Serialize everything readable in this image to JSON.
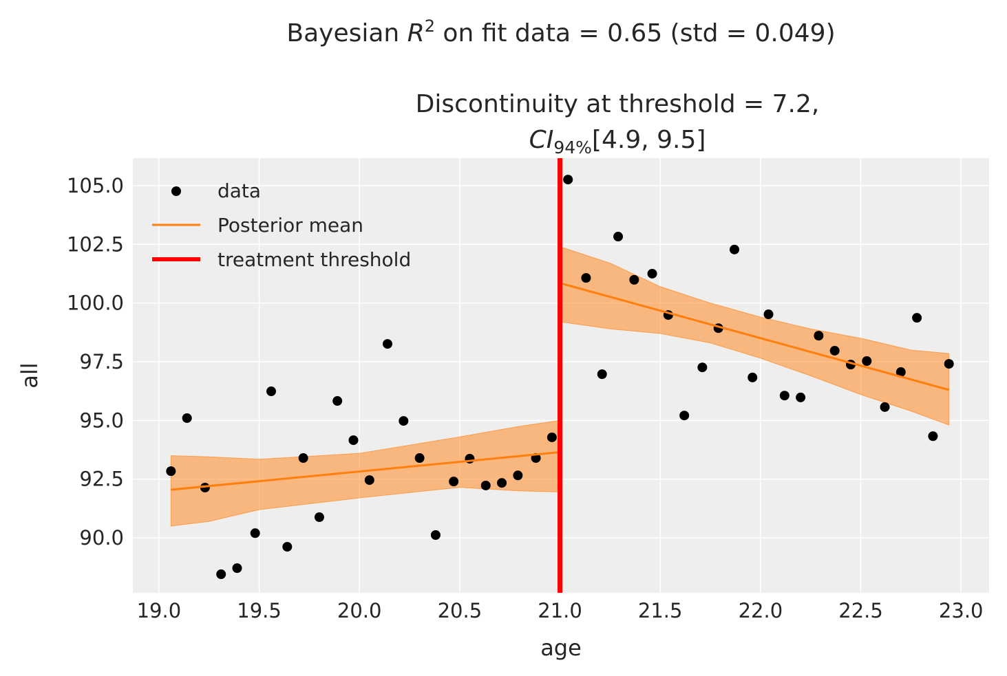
{
  "chart_data": {
    "type": "scatter",
    "title": "Bayesian R² on fit data = 0.65 (std = 0.049)",
    "title_parts": {
      "pre": "Bayesian ",
      "var": "R",
      "sup": "2",
      "post": " on fit data = 0.65 (std = 0.049)"
    },
    "subtitle_line1": "Discontinuity at threshold = 7.2,",
    "subtitle_line2": {
      "var": "CI",
      "sub": "94%",
      "post": "[4.9, 9.5]"
    },
    "xlabel": "age",
    "ylabel": "all",
    "xlim": [
      18.87,
      23.14
    ],
    "ylim": [
      87.66,
      106.17
    ],
    "xticks": [
      "19.0",
      "19.5",
      "20.0",
      "20.5",
      "21.0",
      "21.5",
      "22.0",
      "22.5",
      "23.0"
    ],
    "yticks": [
      "90.0",
      "92.5",
      "95.0",
      "97.5",
      "100.0",
      "102.5",
      "105.0"
    ],
    "grid": true,
    "legend_placement": "top-left",
    "colors": {
      "background": "#eeeeee",
      "data": "#000000",
      "posterior": "#ff7f0e",
      "band": "#f5b27a",
      "threshold": "#ff0000"
    },
    "threshold": 21.0,
    "legend": [
      {
        "label": "data",
        "kind": "marker"
      },
      {
        "label": "Posterior mean",
        "kind": "line"
      },
      {
        "label": "treatment threshold",
        "kind": "threshold"
      }
    ],
    "data": {
      "x": [
        19.06,
        19.14,
        19.23,
        19.31,
        19.39,
        19.48,
        19.56,
        19.64,
        19.72,
        19.8,
        19.89,
        19.97,
        20.05,
        20.14,
        20.22,
        20.3,
        20.38,
        20.47,
        20.55,
        20.63,
        20.71,
        20.79,
        20.88,
        20.96,
        21.04,
        21.13,
        21.21,
        21.29,
        21.37,
        21.46,
        21.54,
        21.62,
        21.71,
        21.79,
        21.87,
        21.96,
        22.04,
        22.12,
        22.2,
        22.29,
        22.37,
        22.45,
        22.53,
        22.62,
        22.7,
        22.78,
        22.86,
        22.94
      ],
      "y": [
        92.84,
        95.1,
        92.14,
        88.45,
        88.71,
        90.2,
        96.24,
        89.62,
        93.4,
        90.88,
        95.83,
        94.16,
        92.46,
        98.26,
        94.98,
        93.4,
        90.12,
        92.4,
        93.37,
        92.23,
        92.34,
        92.66,
        93.4,
        94.28,
        105.26,
        101.07,
        96.97,
        102.83,
        100.99,
        101.25,
        99.49,
        95.21,
        97.26,
        98.93,
        102.28,
        96.83,
        99.52,
        96.06,
        95.98,
        98.61,
        97.97,
        97.38,
        97.53,
        95.57,
        97.06,
        99.37,
        94.33,
        97.41
      ]
    },
    "posterior_mean": [
      {
        "x": [
          19.06,
          21.0
        ],
        "y": [
          92.05,
          93.65
        ]
      },
      {
        "x": [
          21.0,
          22.94
        ],
        "y": [
          100.85,
          96.3
        ]
      }
    ],
    "credible_band": [
      {
        "x": [
          19.06,
          19.25,
          19.5,
          20.0,
          20.5,
          20.8,
          21.0
        ],
        "lower": [
          90.5,
          90.7,
          91.2,
          91.7,
          92.15,
          92.0,
          91.95
        ],
        "upper": [
          93.5,
          93.45,
          93.35,
          93.6,
          94.3,
          94.75,
          95.0
        ]
      },
      {
        "x": [
          21.0,
          21.25,
          21.5,
          21.75,
          22.0,
          22.25,
          22.5,
          22.75,
          22.94
        ],
        "lower": [
          99.2,
          98.9,
          98.7,
          98.3,
          97.65,
          96.9,
          96.1,
          95.4,
          94.8
        ],
        "upper": [
          102.4,
          101.7,
          100.7,
          100.0,
          99.4,
          98.9,
          98.5,
          98.0,
          97.85
        ]
      }
    ]
  }
}
